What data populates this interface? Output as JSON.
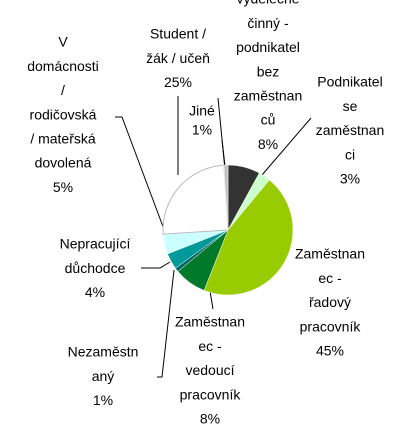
{
  "chart_data": {
    "type": "pie",
    "categories": [
      [
        "výdělečně",
        "činný -",
        "podnikatel",
        "bez",
        "zaměstnan",
        "ců"
      ],
      [
        "Podnikatel",
        "se",
        "zaměstnan",
        "ci"
      ],
      [
        "Zaměstnan",
        "ec -",
        "řadový",
        "pracovník"
      ],
      [
        "Zaměstnan",
        "ec -",
        "vedoucí",
        "pracovník"
      ],
      [
        "Nezaměstn",
        "aný"
      ],
      [
        "Nepracující",
        "důchodce"
      ],
      [
        "V",
        "domácnosti",
        "/",
        "rodičovská",
        "/ mateřská",
        "dovolená"
      ],
      [
        "Student /",
        "žák / učeň"
      ],
      [
        "Jiné"
      ]
    ],
    "values": [
      8,
      3,
      45,
      8,
      1,
      4,
      5,
      25,
      1
    ],
    "value_labels": [
      "8%",
      "3%",
      "45%",
      "8%",
      "1%",
      "4%",
      "5%",
      "25%",
      "1%"
    ],
    "colors": [
      "#333333",
      "#ccffcc",
      "#99cc00",
      "#007a2a",
      "#006666",
      "#009999",
      "#ccffff",
      "#ffffff",
      "#c0c0c0"
    ]
  }
}
